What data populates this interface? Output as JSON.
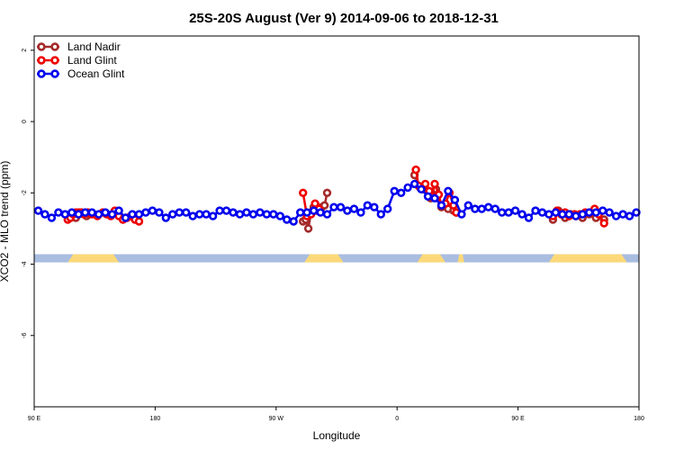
{
  "chart_data": {
    "type": "line",
    "title": "25S-20S August (Ver 9)   2014-09-06 to 2018-12-31",
    "xlabel": "Longitude",
    "ylabel": "XCO2 - MLO trend (ppm)",
    "xlim": [
      0,
      450
    ],
    "ylim": [
      -8,
      2.4
    ],
    "x_ticks": [
      {
        "value": 0,
        "label": "90 E"
      },
      {
        "value": 90,
        "label": "180"
      },
      {
        "value": 180,
        "label": "90 W"
      },
      {
        "value": 270,
        "label": "0"
      },
      {
        "value": 360,
        "label": "90 E"
      },
      {
        "value": 450,
        "label": "180"
      }
    ],
    "y_ticks": [
      {
        "value": 2,
        "label": "2"
      },
      {
        "value": 0,
        "label": "0"
      },
      {
        "value": -2,
        "label": "-2"
      },
      {
        "value": -4,
        "label": "-4"
      },
      {
        "value": -6,
        "label": "-6"
      }
    ],
    "grid": false,
    "legend_position": "top-left",
    "land_mask": {
      "ocean_color": "#a9bde0",
      "land_color": "#fcd978",
      "land_segments": [
        [
          25,
          63
        ],
        [
          201,
          230
        ],
        [
          285,
          306
        ],
        [
          315,
          320
        ],
        [
          383,
          441
        ]
      ]
    },
    "series": [
      {
        "name": "Land Nadir",
        "color": "#a52a2a",
        "points": [
          [
            31,
            -2.7
          ],
          [
            33,
            -2.6
          ],
          [
            35,
            -2.55
          ],
          [
            37,
            -2.6
          ],
          [
            39,
            -2.65
          ],
          [
            41,
            -2.6
          ],
          [
            200,
            -2.8
          ],
          [
            202,
            -2.75
          ],
          [
            204,
            -3.0
          ],
          [
            206,
            -2.55
          ],
          [
            208,
            -2.4
          ],
          [
            210,
            -2.5
          ],
          [
            212,
            -2.45
          ],
          [
            214,
            -2.4
          ],
          [
            216,
            -2.35
          ],
          [
            218,
            -2.0
          ],
          [
            283,
            -1.5
          ],
          [
            287,
            -1.85
          ],
          [
            291,
            -1.9
          ],
          [
            295,
            -2.15
          ],
          [
            299,
            -1.9
          ],
          [
            303,
            -2.4
          ],
          [
            308,
            -2.45
          ],
          [
            312,
            -2.5
          ],
          [
            314,
            -2.55
          ],
          [
            386,
            -2.75
          ],
          [
            390,
            -2.5
          ],
          [
            395,
            -2.7
          ],
          [
            399,
            -2.6
          ],
          [
            403,
            -2.65
          ],
          [
            408,
            -2.7
          ],
          [
            413,
            -2.6
          ],
          [
            418,
            -2.7
          ],
          [
            424,
            -2.75
          ]
        ]
      },
      {
        "name": "Land Glint",
        "color": "#ee0000",
        "points": [
          [
            25,
            -2.75
          ],
          [
            27,
            -2.7
          ],
          [
            29,
            -2.6
          ],
          [
            31,
            -2.55
          ],
          [
            33,
            -2.55
          ],
          [
            35,
            -2.55
          ],
          [
            37,
            -2.6
          ],
          [
            40,
            -2.55
          ],
          [
            43,
            -2.6
          ],
          [
            47,
            -2.65
          ],
          [
            51,
            -2.55
          ],
          [
            54,
            -2.6
          ],
          [
            57,
            -2.65
          ],
          [
            60,
            -2.5
          ],
          [
            63,
            -2.65
          ],
          [
            66,
            -2.75
          ],
          [
            69,
            -2.7
          ],
          [
            72,
            -2.65
          ],
          [
            75,
            -2.75
          ],
          [
            78,
            -2.8
          ],
          [
            200,
            -2.0
          ],
          [
            203,
            -2.65
          ],
          [
            206,
            -2.6
          ],
          [
            209,
            -2.3
          ],
          [
            212,
            -2.45
          ],
          [
            284,
            -1.35
          ],
          [
            286,
            -1.8
          ],
          [
            289,
            -1.9
          ],
          [
            291,
            -1.75
          ],
          [
            294,
            -1.95
          ],
          [
            296,
            -2.1
          ],
          [
            298,
            -1.75
          ],
          [
            301,
            -2.05
          ],
          [
            303,
            -2.35
          ],
          [
            306,
            -2.3
          ],
          [
            309,
            -2.0
          ],
          [
            312,
            -2.35
          ],
          [
            314,
            -2.55
          ],
          [
            386,
            -2.65
          ],
          [
            389,
            -2.5
          ],
          [
            392,
            -2.6
          ],
          [
            395,
            -2.55
          ],
          [
            398,
            -2.65
          ],
          [
            402,
            -2.6
          ],
          [
            406,
            -2.6
          ],
          [
            410,
            -2.55
          ],
          [
            414,
            -2.55
          ],
          [
            417,
            -2.45
          ],
          [
            420,
            -2.6
          ],
          [
            424,
            -2.85
          ]
        ]
      },
      {
        "name": "Ocean Glint",
        "color": "#0000ee",
        "points": [
          [
            3,
            -2.5
          ],
          [
            8,
            -2.6
          ],
          [
            13,
            -2.7
          ],
          [
            18,
            -2.55
          ],
          [
            23,
            -2.6
          ],
          [
            28,
            -2.55
          ],
          [
            33,
            -2.6
          ],
          [
            38,
            -2.55
          ],
          [
            43,
            -2.55
          ],
          [
            48,
            -2.6
          ],
          [
            53,
            -2.55
          ],
          [
            58,
            -2.6
          ],
          [
            63,
            -2.5
          ],
          [
            68,
            -2.7
          ],
          [
            73,
            -2.6
          ],
          [
            78,
            -2.6
          ],
          [
            83,
            -2.55
          ],
          [
            88,
            -2.5
          ],
          [
            93,
            -2.55
          ],
          [
            98,
            -2.7
          ],
          [
            103,
            -2.6
          ],
          [
            108,
            -2.55
          ],
          [
            113,
            -2.55
          ],
          [
            118,
            -2.65
          ],
          [
            123,
            -2.6
          ],
          [
            128,
            -2.6
          ],
          [
            133,
            -2.65
          ],
          [
            138,
            -2.5
          ],
          [
            143,
            -2.5
          ],
          [
            148,
            -2.55
          ],
          [
            153,
            -2.6
          ],
          [
            158,
            -2.55
          ],
          [
            163,
            -2.6
          ],
          [
            168,
            -2.55
          ],
          [
            173,
            -2.6
          ],
          [
            178,
            -2.6
          ],
          [
            183,
            -2.65
          ],
          [
            188,
            -2.75
          ],
          [
            193,
            -2.8
          ],
          [
            198,
            -2.55
          ],
          [
            203,
            -2.55
          ],
          [
            208,
            -2.5
          ],
          [
            213,
            -2.55
          ],
          [
            218,
            -2.6
          ],
          [
            223,
            -2.4
          ],
          [
            228,
            -2.4
          ],
          [
            233,
            -2.5
          ],
          [
            238,
            -2.45
          ],
          [
            243,
            -2.55
          ],
          [
            248,
            -2.35
          ],
          [
            253,
            -2.4
          ],
          [
            258,
            -2.6
          ],
          [
            263,
            -2.45
          ],
          [
            268,
            -1.95
          ],
          [
            273,
            -2.0
          ],
          [
            278,
            -1.85
          ],
          [
            283,
            -1.75
          ],
          [
            288,
            -1.9
          ],
          [
            293,
            -2.1
          ],
          [
            298,
            -2.15
          ],
          [
            303,
            -2.35
          ],
          [
            308,
            -1.95
          ],
          [
            313,
            -2.2
          ],
          [
            318,
            -2.6
          ],
          [
            323,
            -2.35
          ],
          [
            328,
            -2.45
          ],
          [
            333,
            -2.45
          ],
          [
            338,
            -2.4
          ],
          [
            343,
            -2.45
          ],
          [
            348,
            -2.55
          ],
          [
            353,
            -2.55
          ],
          [
            358,
            -2.5
          ],
          [
            363,
            -2.6
          ],
          [
            368,
            -2.7
          ],
          [
            373,
            -2.5
          ],
          [
            378,
            -2.55
          ],
          [
            383,
            -2.6
          ],
          [
            388,
            -2.55
          ],
          [
            393,
            -2.6
          ],
          [
            398,
            -2.6
          ],
          [
            403,
            -2.65
          ],
          [
            408,
            -2.6
          ],
          [
            413,
            -2.55
          ],
          [
            418,
            -2.55
          ],
          [
            423,
            -2.5
          ],
          [
            428,
            -2.55
          ],
          [
            433,
            -2.65
          ],
          [
            438,
            -2.6
          ],
          [
            443,
            -2.65
          ],
          [
            448,
            -2.55
          ]
        ]
      }
    ]
  }
}
